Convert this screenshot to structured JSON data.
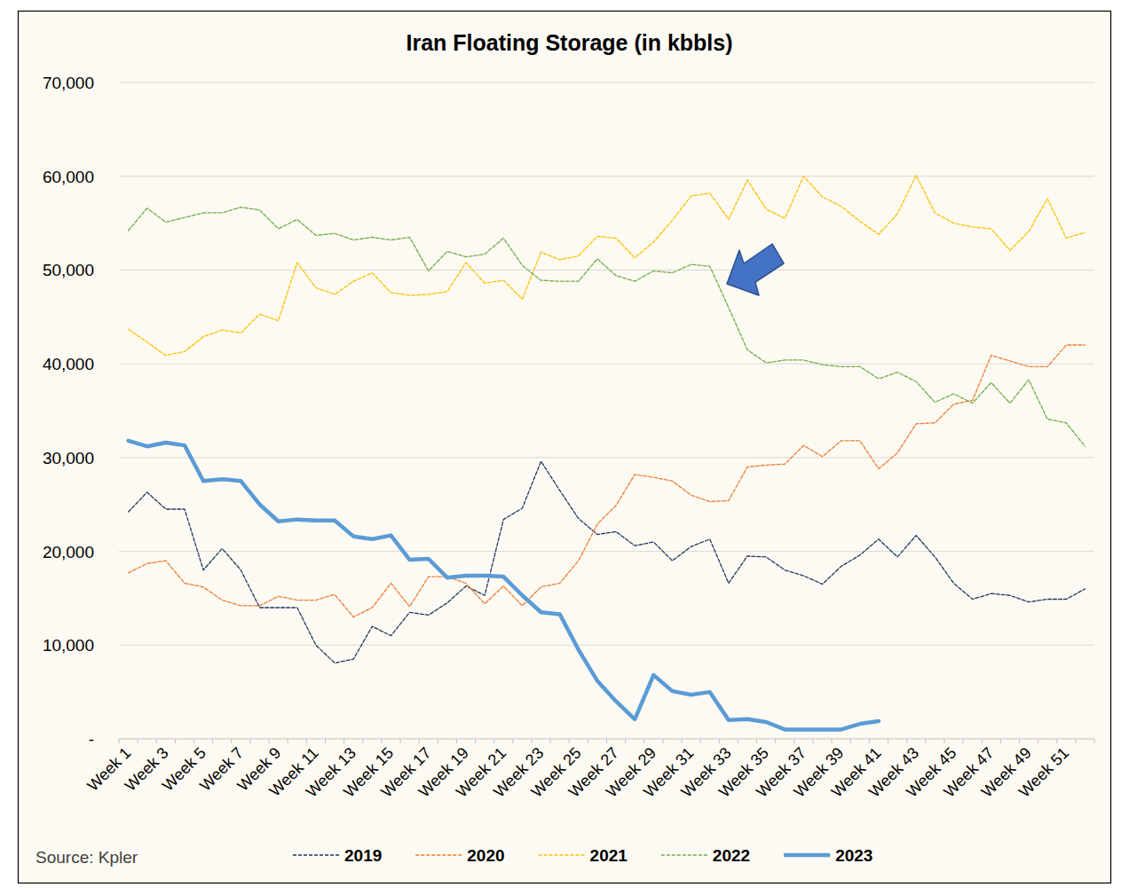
{
  "chart_data": {
    "type": "line",
    "title": "Iran Floating Storage (in kbbls)",
    "annotation": "Source: Kpler",
    "categories": [
      "Week 1",
      null,
      "Week 3",
      null,
      "Week 5",
      null,
      "Week 7",
      null,
      "Week 9",
      null,
      "Week 11",
      null,
      "Week 13",
      null,
      "Week 15",
      null,
      "Week 17",
      null,
      "Week 19",
      null,
      "Week 21",
      null,
      "Week 23",
      null,
      "Week 25",
      null,
      "Week 27",
      null,
      "Week 29",
      null,
      "Week 31",
      null,
      "Week 33",
      null,
      "Week 35",
      null,
      "Week 37",
      null,
      "Week 39",
      null,
      "Week 41",
      null,
      "Week 43",
      null,
      "Week 45",
      null,
      "Week 47",
      null,
      "Week 49",
      null,
      "Week 51",
      null
    ],
    "series": [
      {
        "name": "2019",
        "color": "#203864",
        "line_style": "dashed",
        "values": [
          24200,
          26300,
          24500,
          24500,
          18000,
          20300,
          18000,
          14000,
          14000,
          14000,
          10000,
          8100,
          8500,
          12000,
          11000,
          13500,
          13200,
          14500,
          16300,
          15300,
          23400,
          24600,
          29600,
          26500,
          23500,
          21800,
          22100,
          20600,
          21000,
          19000,
          20500,
          21300,
          16600,
          19500,
          19400,
          18000,
          17400,
          16500,
          18400,
          19600,
          21300,
          19400,
          21700,
          19400,
          16600,
          14900,
          15500,
          15300,
          14600,
          14900,
          14900,
          16000
        ]
      },
      {
        "name": "2020",
        "color": "#ed7d31",
        "line_style": "dashed",
        "values": [
          17700,
          18700,
          19000,
          16600,
          16200,
          14800,
          14200,
          14200,
          15200,
          14800,
          14800,
          15400,
          13000,
          14000,
          16600,
          14100,
          17300,
          17300,
          16600,
          14400,
          16300,
          14200,
          16200,
          16600,
          19000,
          22900,
          24900,
          28200,
          27900,
          27500,
          26000,
          25300,
          25400,
          29000,
          29200,
          29300,
          31300,
          30100,
          31800,
          31800,
          28800,
          30500,
          33600,
          33700,
          35700,
          36100,
          40900,
          40300,
          39700,
          39700,
          42000,
          42000
        ]
      },
      {
        "name": "2021",
        "color": "#ffc000",
        "line_style": "dashed",
        "values": [
          43700,
          42300,
          40900,
          41300,
          42900,
          43600,
          43300,
          45300,
          44600,
          50800,
          48100,
          47400,
          48800,
          49700,
          47600,
          47300,
          47400,
          47700,
          50800,
          48600,
          48900,
          46900,
          51900,
          51100,
          51500,
          53600,
          53400,
          51300,
          53000,
          55300,
          57900,
          58200,
          55400,
          59600,
          56500,
          55500,
          60000,
          57800,
          56800,
          55200,
          53800,
          56000,
          60100,
          56100,
          55000,
          54600,
          54400,
          52100,
          54100,
          57600,
          53400,
          54000
        ]
      },
      {
        "name": "2022",
        "color": "#70ad47",
        "line_style": "dashed",
        "values": [
          54200,
          56600,
          55100,
          55600,
          56100,
          56100,
          56700,
          56400,
          54400,
          55400,
          53700,
          53900,
          53200,
          53500,
          53200,
          53500,
          49900,
          52000,
          51400,
          51700,
          53400,
          50500,
          48900,
          48800,
          48800,
          51200,
          49400,
          48800,
          49900,
          49700,
          50600,
          50400,
          46000,
          41500,
          40100,
          40400,
          40400,
          39900,
          39700,
          39700,
          38400,
          39100,
          38100,
          35900,
          36800,
          35800,
          38000,
          35800,
          38300,
          34100,
          33700,
          31200
        ]
      },
      {
        "name": "2023",
        "color": "#5b9bd5",
        "line_style": "solid",
        "values": [
          31800,
          31200,
          31600,
          31300,
          27500,
          27700,
          27500,
          25000,
          23200,
          23400,
          23300,
          23300,
          21600,
          21300,
          21700,
          19100,
          19200,
          17200,
          17400,
          17400,
          17300,
          15300,
          13500,
          13300,
          9500,
          6200,
          4000,
          2100,
          6800,
          5100,
          4700,
          5000,
          2000,
          2100,
          1800,
          1000,
          1000,
          1000,
          1000,
          1600,
          1900,
          null,
          null,
          null,
          null,
          null,
          null,
          null,
          null,
          null,
          null,
          null
        ]
      }
    ],
    "ylim": [
      0,
      70000
    ],
    "yticks": [
      {
        "value": 0,
        "label": "-"
      },
      {
        "value": 10000,
        "label": "10,000"
      },
      {
        "value": 20000,
        "label": "20,000"
      },
      {
        "value": 30000,
        "label": "30,000"
      },
      {
        "value": 40000,
        "label": "40,000"
      },
      {
        "value": 50000,
        "label": "50,000"
      },
      {
        "value": 60000,
        "label": "60,000"
      },
      {
        "value": 70000,
        "label": "70,000"
      }
    ],
    "grid": true,
    "legend": "bottom"
  }
}
